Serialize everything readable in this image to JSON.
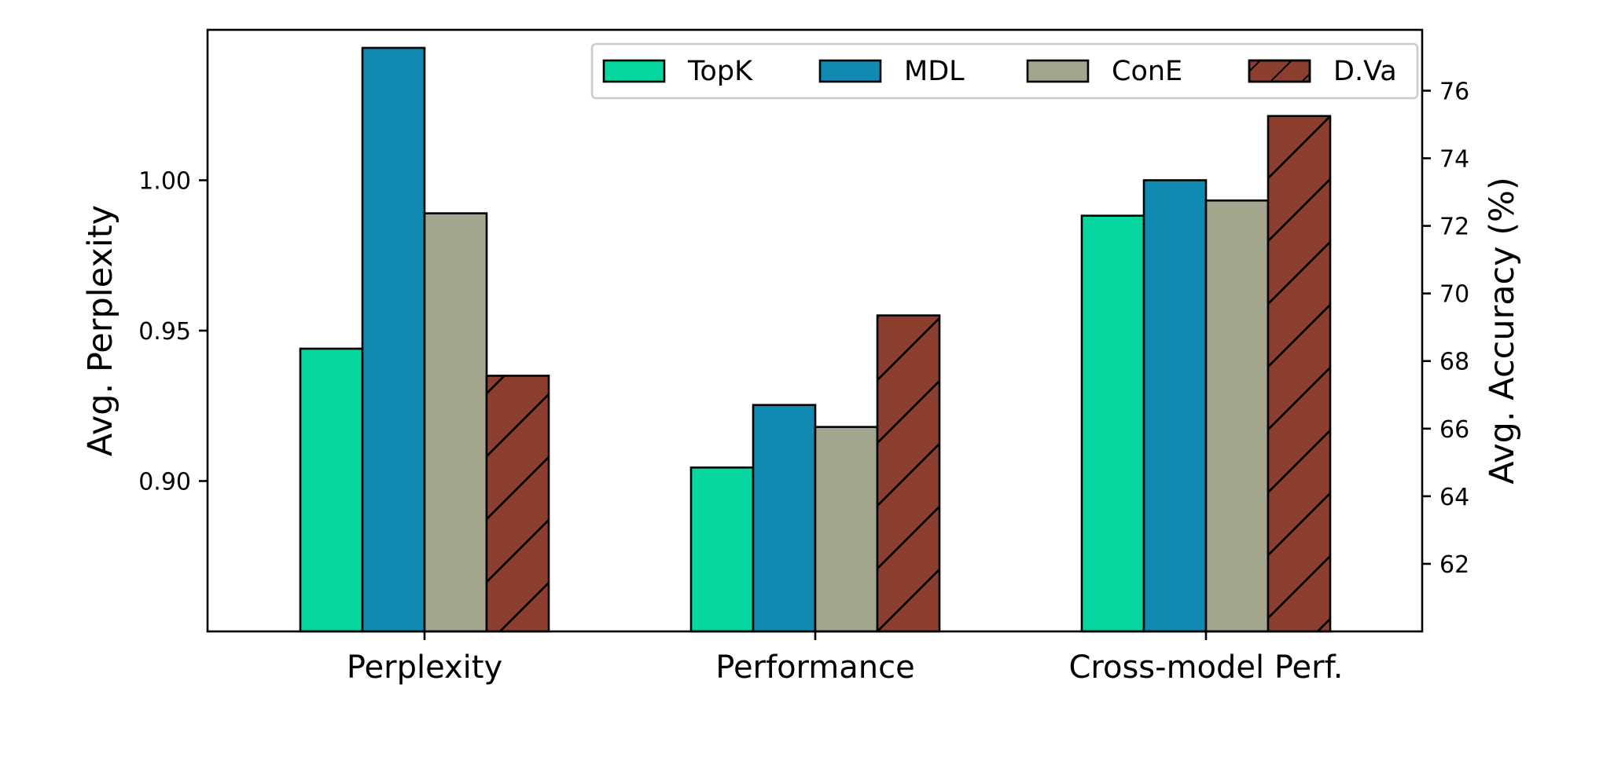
{
  "chart_data": {
    "type": "bar",
    "title": "",
    "categories": [
      "Perplexity",
      "Performance",
      "Cross-model Perf."
    ],
    "left_axis": {
      "label": "Avg. Perplexity",
      "ylim": [
        0.85,
        1.05
      ],
      "ticks": [
        0.9,
        0.95,
        1.0
      ],
      "tick_labels": [
        "0.90",
        "0.95",
        "1.00"
      ]
    },
    "right_axis": {
      "label": "Avg. Accuracy (%)",
      "ylim": [
        60.0,
        77.8
      ],
      "ticks": [
        62,
        64,
        66,
        68,
        70,
        72,
        74,
        76
      ],
      "tick_labels": [
        "62",
        "64",
        "66",
        "68",
        "70",
        "72",
        "74",
        "76"
      ]
    },
    "series": [
      {
        "name": "TopK",
        "color": "#06d6a0",
        "hatch": false,
        "axes": [
          "left",
          "right",
          "right"
        ],
        "values": [
          0.944,
          64.85,
          72.3
        ]
      },
      {
        "name": "MDL",
        "color": "#118ab2",
        "hatch": false,
        "axes": [
          "left",
          "right",
          "right"
        ],
        "values": [
          1.044,
          66.7,
          73.35
        ]
      },
      {
        "name": "ConE",
        "color": "#a4a58d",
        "hatch": false,
        "axes": [
          "left",
          "right",
          "right"
        ],
        "values": [
          0.989,
          66.05,
          72.75
        ]
      },
      {
        "name": "D.Va",
        "color": "#8c3f2f",
        "hatch": true,
        "axes": [
          "left",
          "right",
          "right"
        ],
        "values": [
          0.935,
          69.35,
          75.25
        ]
      }
    ],
    "legend": {
      "position": "top-right",
      "ncol": 4
    },
    "grid": false
  }
}
